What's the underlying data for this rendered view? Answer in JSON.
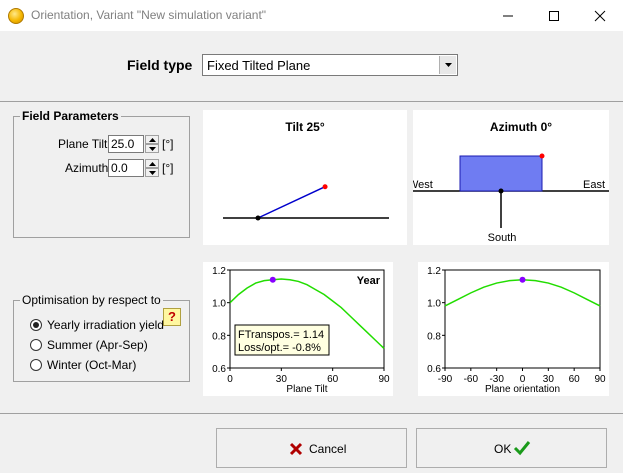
{
  "window": {
    "title": "Orientation, Variant \"New simulation variant\""
  },
  "field_type": {
    "label": "Field type",
    "selected": "Fixed Tilted Plane"
  },
  "field_parameters": {
    "legend": "Field Parameters",
    "plane_tilt_label": "Plane Tilt",
    "plane_tilt_value": "25.0",
    "azimuth_label": "Azimuth",
    "azimuth_value": "0.0",
    "unit": "[°]"
  },
  "optimisation": {
    "legend": "Optimisation by respect to",
    "options": [
      "Yearly irradiation yield",
      "Summer (Apr-Sep)",
      "Winter (Oct-Mar)"
    ],
    "selected_index": 0,
    "help_label": "?"
  },
  "tilt_diagram": {
    "title": "Tilt 25°",
    "tilt_deg": 25
  },
  "azimuth_diagram": {
    "title": "Azimuth 0°",
    "west_label": "West",
    "east_label": "East",
    "south_label": "South",
    "azimuth_deg": 0
  },
  "chart_data": [
    {
      "type": "line",
      "xlabel": "Plane Tilt",
      "ylabel": "",
      "xlim": [
        0,
        90
      ],
      "ylim": [
        0.6,
        1.2
      ],
      "xticks": [
        0,
        30,
        60,
        90
      ],
      "yticks": [
        0.6,
        0.8,
        1.0,
        1.2
      ],
      "series_label": "Year",
      "x": [
        0,
        5,
        10,
        15,
        20,
        25,
        30,
        35,
        40,
        45,
        50,
        55,
        60,
        65,
        70,
        75,
        80,
        85,
        90
      ],
      "y": [
        1.0,
        1.05,
        1.09,
        1.12,
        1.135,
        1.14,
        1.145,
        1.14,
        1.13,
        1.11,
        1.08,
        1.05,
        1.01,
        0.97,
        0.92,
        0.87,
        0.82,
        0.77,
        0.72
      ],
      "marker": {
        "x": 25,
        "y": 1.14
      },
      "info_box": [
        "FTranspos.= 1.14",
        "Loss/opt.= -0.8%"
      ],
      "color": "#22dd00",
      "marker_color": "#8800ff"
    },
    {
      "type": "line",
      "xlabel": "Plane orientation",
      "ylabel": "",
      "xlim": [
        -90,
        90
      ],
      "ylim": [
        0.6,
        1.2
      ],
      "xticks": [
        -90,
        -60,
        -30,
        0,
        30,
        60,
        90
      ],
      "yticks": [
        0.6,
        0.8,
        1.0,
        1.2
      ],
      "x": [
        -90,
        -75,
        -60,
        -45,
        -30,
        -15,
        0,
        15,
        30,
        45,
        60,
        75,
        90
      ],
      "y": [
        0.98,
        1.02,
        1.06,
        1.095,
        1.12,
        1.135,
        1.14,
        1.135,
        1.12,
        1.095,
        1.06,
        1.02,
        0.98
      ],
      "marker": {
        "x": 0,
        "y": 1.14
      },
      "color": "#22dd00",
      "marker_color": "#8800ff"
    }
  ],
  "buttons": {
    "cancel_label": "Cancel",
    "ok_label": "OK"
  }
}
